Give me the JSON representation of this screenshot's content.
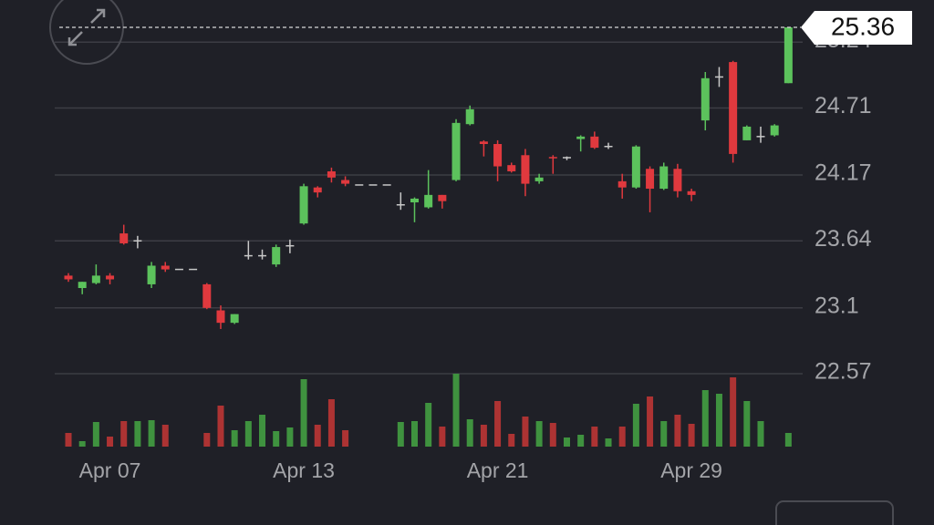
{
  "chart_data": {
    "type": "candlestick",
    "categories": [
      null,
      null,
      null,
      "Apr 07",
      null,
      null,
      null,
      null,
      null,
      null,
      null,
      null,
      null,
      null,
      null,
      null,
      null,
      "Apr 13",
      null,
      null,
      null,
      null,
      null,
      null,
      null,
      null,
      null,
      null,
      null,
      null,
      null,
      "Apr 21",
      null,
      null,
      null,
      null,
      null,
      null,
      null,
      null,
      null,
      null,
      null,
      null,
      null,
      "Apr 29",
      null,
      null,
      null,
      null,
      null,
      null,
      null
    ],
    "open": [
      23.36,
      23.26,
      23.3,
      23.36,
      23.7,
      23.64,
      23.29,
      23.44,
      23.41,
      23.41,
      23.29,
      23.08,
      22.98,
      23.52,
      23.52,
      23.45,
      23.6,
      23.78,
      24.07,
      24.2,
      24.13,
      24.09,
      24.09,
      24.09,
      23.93,
      23.95,
      23.91,
      24.01,
      24.13,
      24.58,
      24.44,
      24.42,
      24.25,
      24.33,
      24.12,
      24.31,
      24.31,
      24.46,
      24.48,
      24.4,
      24.12,
      24.07,
      24.22,
      24.06,
      24.22,
      24.04,
      24.61,
      24.96,
      25.08,
      24.45,
      24.48,
      24.49,
      24.91
    ],
    "high": [
      23.38,
      23.31,
      23.45,
      23.38,
      23.77,
      23.68,
      23.47,
      23.47,
      23.41,
      23.41,
      23.3,
      23.12,
      23.05,
      23.64,
      23.57,
      23.61,
      23.65,
      24.1,
      24.08,
      24.23,
      24.16,
      24.09,
      24.09,
      24.09,
      24.03,
      23.99,
      24.21,
      24.01,
      24.62,
      24.73,
      24.45,
      24.45,
      24.27,
      24.38,
      24.18,
      24.33,
      24.32,
      24.49,
      24.52,
      24.43,
      24.18,
      24.41,
      24.24,
      24.27,
      24.26,
      24.06,
      25.0,
      25.04,
      25.09,
      24.57,
      24.56,
      24.58,
      25.36
    ],
    "low": [
      23.31,
      23.21,
      23.29,
      23.29,
      23.61,
      23.58,
      23.26,
      23.39,
      23.41,
      23.41,
      23.09,
      22.93,
      22.97,
      23.49,
      23.49,
      23.43,
      23.54,
      23.77,
      23.99,
      24.11,
      24.08,
      24.09,
      24.09,
      24.09,
      23.89,
      23.79,
      23.9,
      23.9,
      24.12,
      24.57,
      24.32,
      24.12,
      24.19,
      24.0,
      24.1,
      24.18,
      24.29,
      24.36,
      24.38,
      24.38,
      23.98,
      24.06,
      23.87,
      24.05,
      23.99,
      23.96,
      24.53,
      24.88,
      24.27,
      24.45,
      24.43,
      24.48,
      24.91
    ],
    "close": [
      23.33,
      23.31,
      23.36,
      23.33,
      23.62,
      23.64,
      23.44,
      23.41,
      23.41,
      23.41,
      23.1,
      22.98,
      23.05,
      23.52,
      23.52,
      23.59,
      23.6,
      24.08,
      24.03,
      24.15,
      24.1,
      24.09,
      24.09,
      24.09,
      23.93,
      23.98,
      24.01,
      23.96,
      24.59,
      24.7,
      24.42,
      24.24,
      24.2,
      24.1,
      24.15,
      24.3,
      24.31,
      24.48,
      24.39,
      24.4,
      24.07,
      24.4,
      24.06,
      24.24,
      24.04,
      24.01,
      24.95,
      24.96,
      24.34,
      24.56,
      24.48,
      24.57,
      25.36
    ],
    "volume": [
      15,
      6,
      27,
      11,
      28,
      28,
      29,
      24,
      0,
      0,
      15,
      45,
      18,
      28,
      35,
      17,
      21,
      74,
      24,
      52,
      18,
      0,
      0,
      0,
      27,
      28,
      48,
      22,
      80,
      30,
      24,
      50,
      14,
      33,
      28,
      26,
      10,
      13,
      22,
      9,
      22,
      47,
      55,
      28,
      35,
      25,
      62,
      58,
      76,
      50,
      28,
      0,
      15
    ],
    "ylim": [
      22.57,
      25.58
    ],
    "yticks": [
      22.57,
      23.1,
      23.64,
      24.17,
      24.71,
      25.24
    ],
    "vlim": [
      0,
      80
    ],
    "up_color": "#5cc25c",
    "down_color": "#e0393e",
    "flat_color": "#c8c8c8",
    "volume_up_color": "#3f923f",
    "volume_down_color": "#ad3333",
    "grid": true
  }
}
